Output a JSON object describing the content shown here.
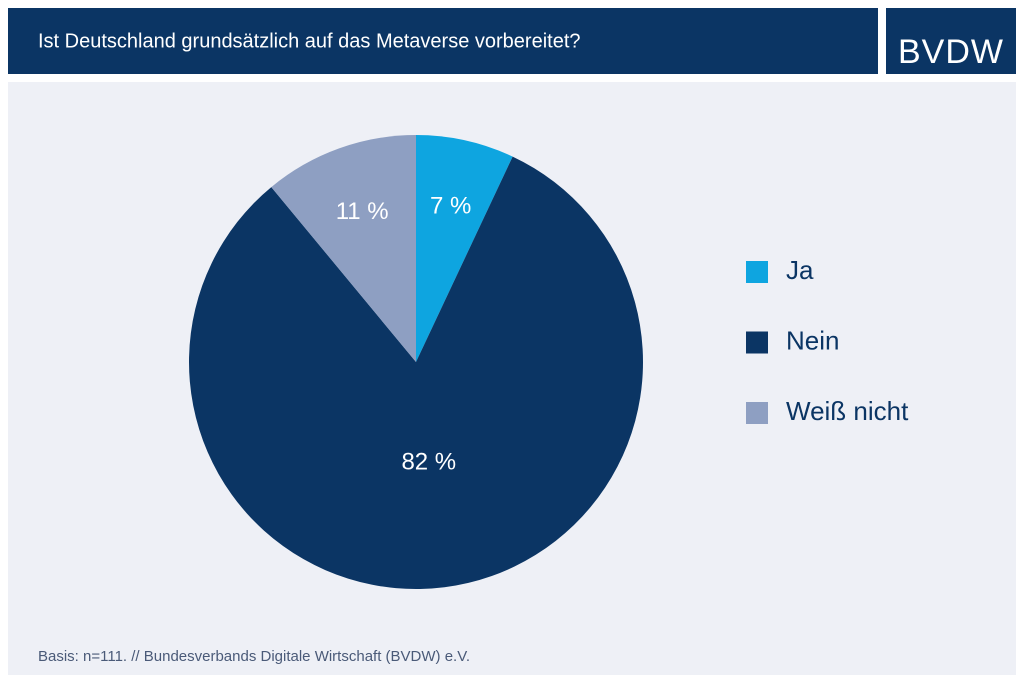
{
  "chart_data": {
    "type": "pie",
    "title": "Ist Deutschland grundsätzlich auf das Metaverse vorbereitet?",
    "logo": "BVDW",
    "categories": [
      "Ja",
      "Nein",
      "Weiß nicht"
    ],
    "values": [
      7,
      82,
      11
    ],
    "value_labels": [
      "7 %",
      "82 %",
      "11 %"
    ],
    "colors": [
      "#0ea5e0",
      "#0b3564",
      "#8e9fc2"
    ],
    "legend": "right",
    "source": "Basis: n=111. // Bundesverbands Digitale Wirtschaft (BVDW) e.V."
  }
}
